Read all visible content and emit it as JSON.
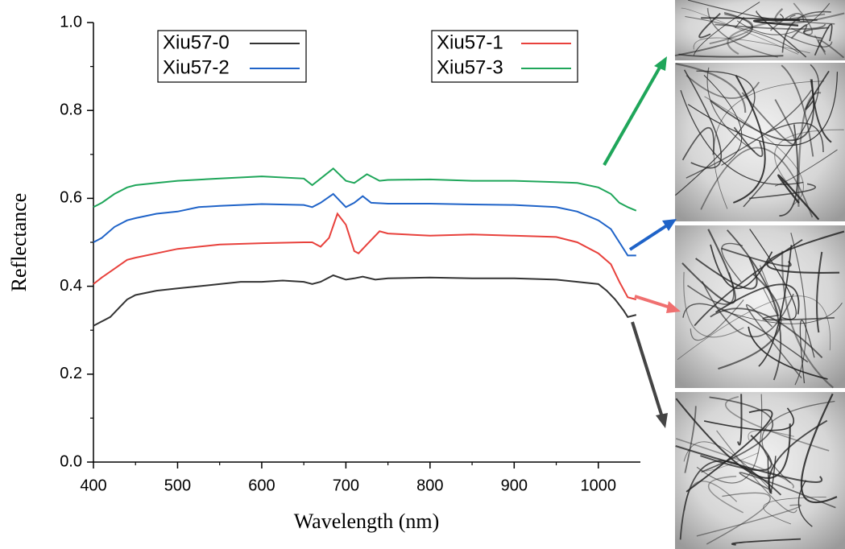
{
  "chart_data": {
    "type": "line",
    "xlabel": "Wavelength (nm)",
    "ylabel": "Reflectance",
    "xlim": [
      400,
      1050
    ],
    "xticks": [
      400,
      500,
      600,
      700,
      800,
      900,
      1000
    ],
    "ylim": [
      0,
      1
    ],
    "yticks": [
      {
        "value": 0,
        "label": "0.0"
      },
      0.2,
      0.4,
      0.6,
      0.8,
      {
        "value": 1,
        "label": "1.0"
      }
    ],
    "series": [
      {
        "name": "Xiu57-0",
        "color": "#333333",
        "x": [
          400,
          410,
          420,
          430,
          440,
          450,
          475,
          500,
          525,
          550,
          575,
          600,
          625,
          650,
          660,
          670,
          685,
          700,
          710,
          720,
          735,
          750,
          800,
          850,
          900,
          950,
          975,
          1000,
          1010,
          1020,
          1030,
          1035,
          1045
        ],
        "values": [
          0.31,
          0.32,
          0.33,
          0.35,
          0.37,
          0.38,
          0.39,
          0.395,
          0.4,
          0.405,
          0.41,
          0.41,
          0.413,
          0.41,
          0.405,
          0.41,
          0.425,
          0.415,
          0.418,
          0.422,
          0.415,
          0.418,
          0.42,
          0.418,
          0.418,
          0.415,
          0.41,
          0.405,
          0.39,
          0.37,
          0.345,
          0.33,
          0.335
        ]
      },
      {
        "name": "Xiu57-1",
        "color": "#e8413c",
        "x": [
          400,
          410,
          425,
          440,
          450,
          475,
          500,
          525,
          550,
          600,
          650,
          660,
          670,
          680,
          690,
          700,
          710,
          715,
          725,
          740,
          750,
          800,
          850,
          900,
          950,
          975,
          1000,
          1015,
          1025,
          1035,
          1045
        ],
        "values": [
          0.405,
          0.42,
          0.44,
          0.46,
          0.465,
          0.475,
          0.485,
          0.49,
          0.495,
          0.498,
          0.5,
          0.5,
          0.49,
          0.51,
          0.565,
          0.54,
          0.48,
          0.475,
          0.495,
          0.525,
          0.52,
          0.515,
          0.518,
          0.515,
          0.512,
          0.5,
          0.475,
          0.45,
          0.41,
          0.375,
          0.37
        ]
      },
      {
        "name": "Xiu57-2",
        "color": "#1f63c8",
        "x": [
          400,
          410,
          425,
          440,
          450,
          475,
          500,
          525,
          550,
          600,
          650,
          660,
          670,
          685,
          700,
          710,
          720,
          730,
          750,
          800,
          850,
          900,
          950,
          975,
          1000,
          1015,
          1025,
          1035,
          1045
        ],
        "values": [
          0.5,
          0.51,
          0.535,
          0.55,
          0.555,
          0.565,
          0.57,
          0.58,
          0.583,
          0.587,
          0.585,
          0.58,
          0.59,
          0.61,
          0.58,
          0.59,
          0.605,
          0.59,
          0.588,
          0.588,
          0.586,
          0.585,
          0.58,
          0.57,
          0.55,
          0.53,
          0.5,
          0.47,
          0.47
        ]
      },
      {
        "name": "Xiu57-3",
        "color": "#1fa65a",
        "x": [
          400,
          410,
          425,
          440,
          450,
          475,
          500,
          550,
          600,
          650,
          660,
          670,
          685,
          700,
          710,
          725,
          740,
          750,
          800,
          850,
          900,
          950,
          975,
          1000,
          1015,
          1025,
          1035,
          1045
        ],
        "values": [
          0.58,
          0.59,
          0.61,
          0.625,
          0.63,
          0.635,
          0.64,
          0.645,
          0.65,
          0.645,
          0.63,
          0.645,
          0.668,
          0.64,
          0.635,
          0.655,
          0.64,
          0.642,
          0.643,
          0.64,
          0.64,
          0.637,
          0.635,
          0.625,
          0.61,
          0.59,
          0.58,
          0.572
        ]
      }
    ]
  }
}
